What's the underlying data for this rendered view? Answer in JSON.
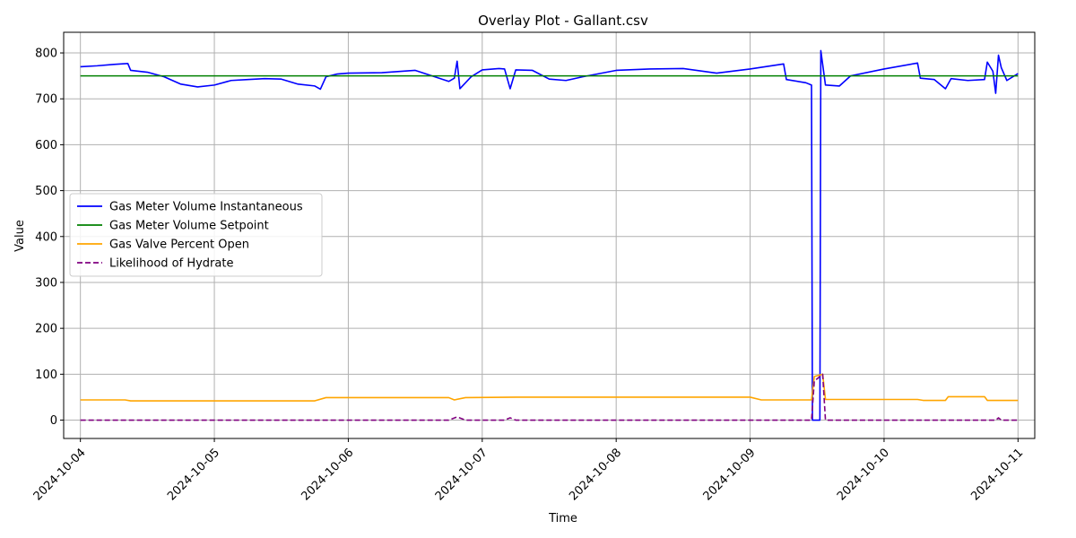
{
  "chart_data": {
    "type": "line",
    "title": "Overlay Plot - Gallant.csv",
    "xlabel": "Time",
    "ylabel": "Value",
    "x_range": [
      "2024-10-03T21:00",
      "2024-10-11T03:00"
    ],
    "ylim": [
      -40,
      845
    ],
    "grid": true,
    "legend_position": "center-left",
    "x_ticks": [
      "2024-10-04",
      "2024-10-05",
      "2024-10-06",
      "2024-10-07",
      "2024-10-08",
      "2024-10-09",
      "2024-10-10",
      "2024-10-11"
    ],
    "y_ticks": [
      0,
      100,
      200,
      300,
      400,
      500,
      600,
      700,
      800
    ],
    "series": [
      {
        "name": "Gas Meter Volume Instantaneous",
        "color": "#0000ff",
        "style": "solid",
        "points": [
          [
            "2024-10-04T00:00",
            770
          ],
          [
            "2024-10-04T03:00",
            772
          ],
          [
            "2024-10-04T06:00",
            775
          ],
          [
            "2024-10-04T08:30",
            777
          ],
          [
            "2024-10-04T09:00",
            762
          ],
          [
            "2024-10-04T12:00",
            758
          ],
          [
            "2024-10-04T15:00",
            748
          ],
          [
            "2024-10-04T18:00",
            732
          ],
          [
            "2024-10-04T21:00",
            726
          ],
          [
            "2024-10-05T00:00",
            730
          ],
          [
            "2024-10-05T03:00",
            740
          ],
          [
            "2024-10-05T06:00",
            742
          ],
          [
            "2024-10-05T09:00",
            744
          ],
          [
            "2024-10-05T12:00",
            743
          ],
          [
            "2024-10-05T15:00",
            732
          ],
          [
            "2024-10-05T18:00",
            728
          ],
          [
            "2024-10-05T19:00",
            721
          ],
          [
            "2024-10-05T20:00",
            748
          ],
          [
            "2024-10-05T22:00",
            754
          ],
          [
            "2024-10-06T00:00",
            756
          ],
          [
            "2024-10-06T06:00",
            757
          ],
          [
            "2024-10-06T12:00",
            762
          ],
          [
            "2024-10-06T15:00",
            750
          ],
          [
            "2024-10-06T18:00",
            738
          ],
          [
            "2024-10-06T19:00",
            745
          ],
          [
            "2024-10-06T19:30",
            782
          ],
          [
            "2024-10-06T20:00",
            722
          ],
          [
            "2024-10-06T22:00",
            748
          ],
          [
            "2024-10-07T00:00",
            763
          ],
          [
            "2024-10-07T03:00",
            766
          ],
          [
            "2024-10-07T04:00",
            765
          ],
          [
            "2024-10-07T05:00",
            722
          ],
          [
            "2024-10-07T06:00",
            763
          ],
          [
            "2024-10-07T09:00",
            762
          ],
          [
            "2024-10-07T12:00",
            743
          ],
          [
            "2024-10-07T15:00",
            740
          ],
          [
            "2024-10-07T18:00",
            748
          ],
          [
            "2024-10-08T00:00",
            762
          ],
          [
            "2024-10-08T06:00",
            765
          ],
          [
            "2024-10-08T12:00",
            766
          ],
          [
            "2024-10-08T18:00",
            756
          ],
          [
            "2024-10-09T00:00",
            765
          ],
          [
            "2024-10-09T06:00",
            776
          ],
          [
            "2024-10-09T06:30",
            742
          ],
          [
            "2024-10-09T10:00",
            735
          ],
          [
            "2024-10-09T11:00",
            730
          ],
          [
            "2024-10-09T11:10",
            0
          ],
          [
            "2024-10-09T12:30",
            0
          ],
          [
            "2024-10-09T12:40",
            805
          ],
          [
            "2024-10-09T13:30",
            730
          ],
          [
            "2024-10-09T16:00",
            728
          ],
          [
            "2024-10-09T18:00",
            750
          ],
          [
            "2024-10-10T00:00",
            765
          ],
          [
            "2024-10-10T06:00",
            778
          ],
          [
            "2024-10-10T06:30",
            745
          ],
          [
            "2024-10-10T09:00",
            742
          ],
          [
            "2024-10-10T11:00",
            722
          ],
          [
            "2024-10-10T12:00",
            744
          ],
          [
            "2024-10-10T15:00",
            740
          ],
          [
            "2024-10-10T18:00",
            742
          ],
          [
            "2024-10-10T18:30",
            780
          ],
          [
            "2024-10-10T19:30",
            760
          ],
          [
            "2024-10-10T20:00",
            712
          ],
          [
            "2024-10-10T20:30",
            795
          ],
          [
            "2024-10-10T21:00",
            768
          ],
          [
            "2024-10-10T22:00",
            740
          ],
          [
            "2024-10-11T00:00",
            755
          ]
        ]
      },
      {
        "name": "Gas Meter Volume Setpoint",
        "color": "#008000",
        "style": "solid",
        "points": [
          [
            "2024-10-04T00:00",
            750
          ],
          [
            "2024-10-11T00:00",
            750
          ]
        ]
      },
      {
        "name": "Gas Valve Percent Open",
        "color": "#ffa500",
        "style": "solid",
        "points": [
          [
            "2024-10-04T00:00",
            44
          ],
          [
            "2024-10-04T08:00",
            44
          ],
          [
            "2024-10-04T09:00",
            42
          ],
          [
            "2024-10-05T18:00",
            42
          ],
          [
            "2024-10-05T20:00",
            49
          ],
          [
            "2024-10-06T18:00",
            49
          ],
          [
            "2024-10-06T19:00",
            44
          ],
          [
            "2024-10-06T21:00",
            49
          ],
          [
            "2024-10-07T06:00",
            50
          ],
          [
            "2024-10-09T00:00",
            50
          ],
          [
            "2024-10-09T02:00",
            44
          ],
          [
            "2024-10-09T11:00",
            44
          ],
          [
            "2024-10-09T11:30",
            95
          ],
          [
            "2024-10-09T13:00",
            100
          ],
          [
            "2024-10-09T13:30",
            45
          ],
          [
            "2024-10-10T06:00",
            45
          ],
          [
            "2024-10-10T07:00",
            43
          ],
          [
            "2024-10-10T11:00",
            43
          ],
          [
            "2024-10-10T11:30",
            51
          ],
          [
            "2024-10-10T18:00",
            51
          ],
          [
            "2024-10-10T18:30",
            43
          ],
          [
            "2024-10-11T00:00",
            43
          ]
        ]
      },
      {
        "name": "Likelihood of Hydrate",
        "color": "#800080",
        "style": "dashed",
        "points": [
          [
            "2024-10-04T00:00",
            0
          ],
          [
            "2024-10-06T18:00",
            0
          ],
          [
            "2024-10-06T19:30",
            7
          ],
          [
            "2024-10-06T21:00",
            0
          ],
          [
            "2024-10-07T04:00",
            0
          ],
          [
            "2024-10-07T05:00",
            5
          ],
          [
            "2024-10-07T06:00",
            0
          ],
          [
            "2024-10-09T11:00",
            0
          ],
          [
            "2024-10-09T11:30",
            85
          ],
          [
            "2024-10-09T13:00",
            100
          ],
          [
            "2024-10-09T13:30",
            0
          ],
          [
            "2024-10-10T20:00",
            0
          ],
          [
            "2024-10-10T20:30",
            5
          ],
          [
            "2024-10-10T21:00",
            0
          ],
          [
            "2024-10-11T00:00",
            0
          ]
        ]
      }
    ]
  }
}
